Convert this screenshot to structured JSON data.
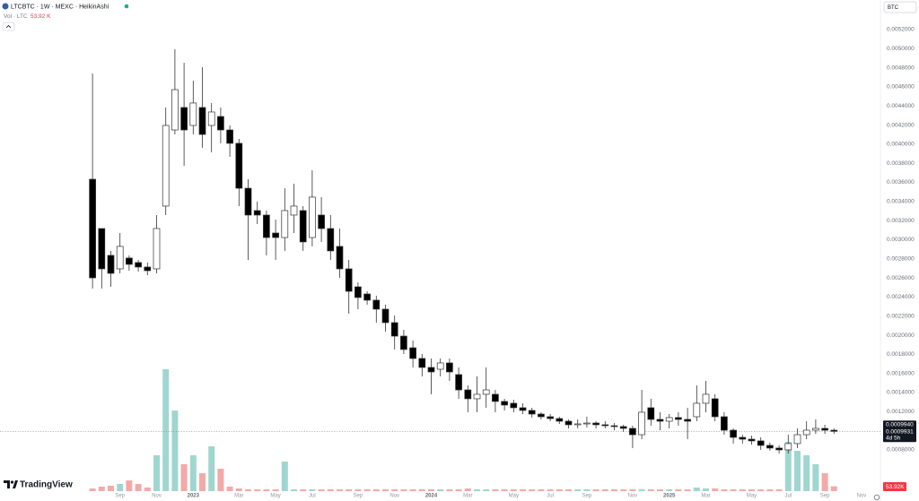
{
  "header": {
    "symbol": "LTCBTC · 1W · MEXC · HeikinAshi",
    "volume_title": "Vol · LTC",
    "volume_value": "53.92 K",
    "currency": "BTC",
    "brand": "TradingView"
  },
  "chart_data": {
    "type": "candlestick",
    "categories": [
      null,
      null,
      null,
      "Sep",
      null,
      null,
      null,
      "Nov",
      null,
      null,
      null,
      "2023",
      null,
      null,
      null,
      null,
      "Mar",
      null,
      null,
      null,
      "May",
      null,
      null,
      null,
      "Jul",
      null,
      null,
      null,
      null,
      "Sep",
      null,
      null,
      null,
      "Nov",
      null,
      null,
      null,
      "2024",
      null,
      null,
      null,
      "Mar",
      null,
      null,
      null,
      null,
      "May",
      null,
      null,
      null,
      "Jul",
      null,
      null,
      null,
      "Sep",
      null,
      null,
      null,
      null,
      "Nov",
      null,
      null,
      null,
      "2025",
      null,
      null,
      null,
      "Mar",
      null,
      null,
      null,
      null,
      "May",
      null,
      null,
      null,
      "Jul",
      null,
      null,
      null,
      "Sep",
      null,
      null,
      null,
      "Nov",
      null
    ],
    "open": [
      0.003633,
      0.003117,
      0.002836,
      0.002695,
      0.002808,
      0.002761,
      0.002714,
      0.002695,
      0.003352,
      0.004149,
      0.004384,
      0.004196,
      0.004384,
      0.004196,
      0.00429,
      0.004149,
      0.004009,
      0.003539,
      0.003305,
      0.003258,
      0.00307,
      0.003023,
      0.003258,
      0.003305,
      0.003023,
      0.003258,
      0.003117,
      0.00293,
      0.002695,
      0.002507,
      0.002432,
      0.002367,
      0.002273,
      0.002132,
      0.001991,
      0.001869,
      0.001757,
      0.001663,
      0.001644,
      0.00171,
      0.001588,
      0.001428,
      0.001335,
      0.001382,
      0.001382,
      0.001307,
      0.001288,
      0.001241,
      0.001213,
      0.001175,
      0.001147,
      0.001128,
      0.0011,
      0.001063,
      0.001072,
      0.001081,
      0.001063,
      0.001053,
      0.001044,
      0.001025,
      0.000959,
      0.001241,
      0.001119,
      0.0011,
      0.001138,
      0.001119,
      0.001147,
      0.001288,
      0.001335,
      0.001147,
      0.001006,
      0.000931,
      0.000912,
      0.000894,
      0.000847,
      0.000819,
      0.0008,
      0.000866,
      0.000959,
      0.001006,
      0.001025,
      0.001006,
      null,
      null,
      null,
      null
    ],
    "high": [
      0.00474,
      0.003117,
      0.002883,
      0.00307,
      0.002836,
      0.002789,
      0.002761,
      0.003258,
      0.004384,
      0.004994,
      0.004853,
      0.004665,
      0.004806,
      0.004431,
      0.004384,
      0.004196,
      0.004055,
      0.003633,
      0.003399,
      0.003305,
      0.003211,
      0.003539,
      0.003586,
      0.003352,
      0.003727,
      0.003446,
      0.003258,
      0.003117,
      0.002789,
      0.002554,
      0.00246,
      0.002414,
      0.00232,
      0.002207,
      0.002057,
      0.001944,
      0.001804,
      0.001757,
      0.001757,
      0.001757,
      0.001663,
      0.001475,
      0.001569,
      0.001663,
      0.001428,
      0.001335,
      0.001325,
      0.001288,
      0.001241,
      0.001194,
      0.001175,
      0.001147,
      0.001119,
      0.001119,
      0.001147,
      0.0011,
      0.0011,
      0.001081,
      0.001063,
      0.001053,
      0.001428,
      0.001335,
      0.001194,
      0.001175,
      0.001194,
      0.001241,
      0.001475,
      0.001522,
      0.001382,
      0.001194,
      0.001025,
      0.000959,
      0.00095,
      0.000931,
      0.000875,
      0.000847,
      0.000959,
      0.001025,
      0.0011,
      0.001119,
      0.001063,
      0.001025,
      null,
      null,
      null,
      null
    ],
    "low": [
      0.002489,
      0.002489,
      0.002507,
      0.002648,
      0.002676,
      0.002667,
      0.002629,
      0.002648,
      0.003258,
      0.004102,
      0.003774,
      0.004102,
      0.003962,
      0.003915,
      0.004009,
      0.003868,
      0.003352,
      0.002789,
      0.003164,
      0.002836,
      0.002789,
      0.002883,
      0.00307,
      0.002883,
      0.00293,
      0.002977,
      0.002789,
      0.002601,
      0.002226,
      0.002273,
      0.00232,
      0.002132,
      0.002038,
      0.001851,
      0.001804,
      0.001663,
      0.001569,
      0.001382,
      0.001569,
      0.001522,
      0.001335,
      0.001194,
      0.001194,
      0.001241,
      0.001194,
      0.001213,
      0.001194,
      0.001175,
      0.001138,
      0.001119,
      0.0011,
      0.001072,
      0.001025,
      0.001025,
      0.001034,
      0.001025,
      0.001025,
      0.001006,
      0.000988,
      0.000819,
      0.000912,
      0.001053,
      0.001006,
      0.001025,
      0.001053,
      0.000912,
      0.0011,
      0.001194,
      0.0011,
      0.000959,
      0.000866,
      0.000866,
      0.000856,
      0.0008,
      0.000791,
      0.000762,
      0.000762,
      0.000819,
      0.000912,
      0.000969,
      0.000969,
      0.000969,
      null,
      null,
      null,
      null
    ],
    "close": [
      0.002601,
      0.002695,
      0.002648,
      0.00293,
      0.002742,
      0.002714,
      0.002676,
      0.003117,
      0.004196,
      0.004571,
      0.004149,
      0.004431,
      0.004102,
      0.004337,
      0.004149,
      0.004009,
      0.003539,
      0.003258,
      0.003258,
      0.003023,
      0.003023,
      0.003305,
      0.003352,
      0.002977,
      0.003446,
      0.003117,
      0.002883,
      0.002695,
      0.00246,
      0.002395,
      0.002367,
      0.002273,
      0.002132,
      0.001991,
      0.001851,
      0.001757,
      0.001663,
      0.001616,
      0.00171,
      0.001616,
      0.001428,
      0.001335,
      0.001382,
      0.001428,
      0.001307,
      0.001269,
      0.001241,
      0.001213,
      0.001175,
      0.001147,
      0.001128,
      0.0011,
      0.001063,
      0.001072,
      0.001081,
      0.001063,
      0.001053,
      0.001044,
      0.001025,
      0.000959,
      0.001194,
      0.001119,
      0.0011,
      0.001138,
      0.001119,
      0.0011,
      0.001288,
      0.001382,
      0.001147,
      0.001006,
      0.000931,
      0.000912,
      0.000894,
      0.000847,
      0.000819,
      0.0008,
      0.000866,
      0.000959,
      0.001006,
      0.001025,
      0.001006,
      0.000994,
      null,
      null,
      null,
      null
    ],
    "volume": [
      30000,
      50000,
      60000,
      80000,
      120000,
      80000,
      40000,
      400000,
      1360000,
      900000,
      300000,
      400000,
      200000,
      500000,
      250000,
      50000,
      30000,
      20000,
      20000,
      20000,
      20000,
      330000,
      20000,
      20000,
      20000,
      20000,
      20000,
      20000,
      20000,
      20000,
      20000,
      20000,
      20000,
      20000,
      20000,
      20000,
      20000,
      20000,
      20000,
      20000,
      20000,
      30000,
      20000,
      20000,
      20000,
      20000,
      20000,
      20000,
      20000,
      20000,
      20000,
      20000,
      20000,
      20000,
      20000,
      20000,
      20000,
      20000,
      20000,
      20000,
      20000,
      20000,
      20000,
      20000,
      20000,
      20000,
      40000,
      30000,
      30000,
      20000,
      20000,
      20000,
      20000,
      20000,
      20000,
      20000,
      550000,
      450000,
      400000,
      300000,
      200000,
      53920,
      null,
      null,
      null,
      null
    ],
    "volume_label": "53.92K",
    "last_price": {
      "value": 0.000994,
      "label": "0.0009940"
    },
    "prev_price": {
      "value": 0.0009931,
      "label": "0.0009931"
    },
    "countdown": "4d 5h",
    "ylim": [
      0.0004,
      0.0055
    ],
    "yticks": [
      {
        "value": 0.0008,
        "label": "0.0008000"
      },
      {
        "value": 0.001,
        "label": "0.0010000"
      },
      {
        "value": 0.0012,
        "label": "0.0012000"
      },
      {
        "value": 0.0014,
        "label": "0.0014000"
      },
      {
        "value": 0.0016,
        "label": "0.0016000"
      },
      {
        "value": 0.0018,
        "label": "0.0018000"
      },
      {
        "value": 0.002,
        "label": "0.0020000"
      },
      {
        "value": 0.0022,
        "label": "0.0022000"
      },
      {
        "value": 0.0024,
        "label": "0.0024000"
      },
      {
        "value": 0.0026,
        "label": "0.0026000"
      },
      {
        "value": 0.0028,
        "label": "0.0028000"
      },
      {
        "value": 0.003,
        "label": "0.0030000"
      },
      {
        "value": 0.0032,
        "label": "0.0032000"
      },
      {
        "value": 0.0034,
        "label": "0.0034000"
      },
      {
        "value": 0.0036,
        "label": "0.0036000"
      },
      {
        "value": 0.0038,
        "label": "0.0038000"
      },
      {
        "value": 0.004,
        "label": "0.0040000"
      },
      {
        "value": 0.0042,
        "label": "0.0042000"
      },
      {
        "value": 0.0044,
        "label": "0.0044000"
      },
      {
        "value": 0.0046,
        "label": "0.0046000"
      },
      {
        "value": 0.0048,
        "label": "0.0048000"
      },
      {
        "value": 0.005,
        "label": "0.0050000"
      },
      {
        "value": 0.0052,
        "label": "0.0052000"
      }
    ],
    "grid": false,
    "up_color": "#ffffff",
    "down_color": "#000000",
    "wick_color": "#333333",
    "volume_up_color": "#9fd6d0",
    "volume_down_color": "#f4a9a8",
    "volume_label_color": "#f23645"
  }
}
